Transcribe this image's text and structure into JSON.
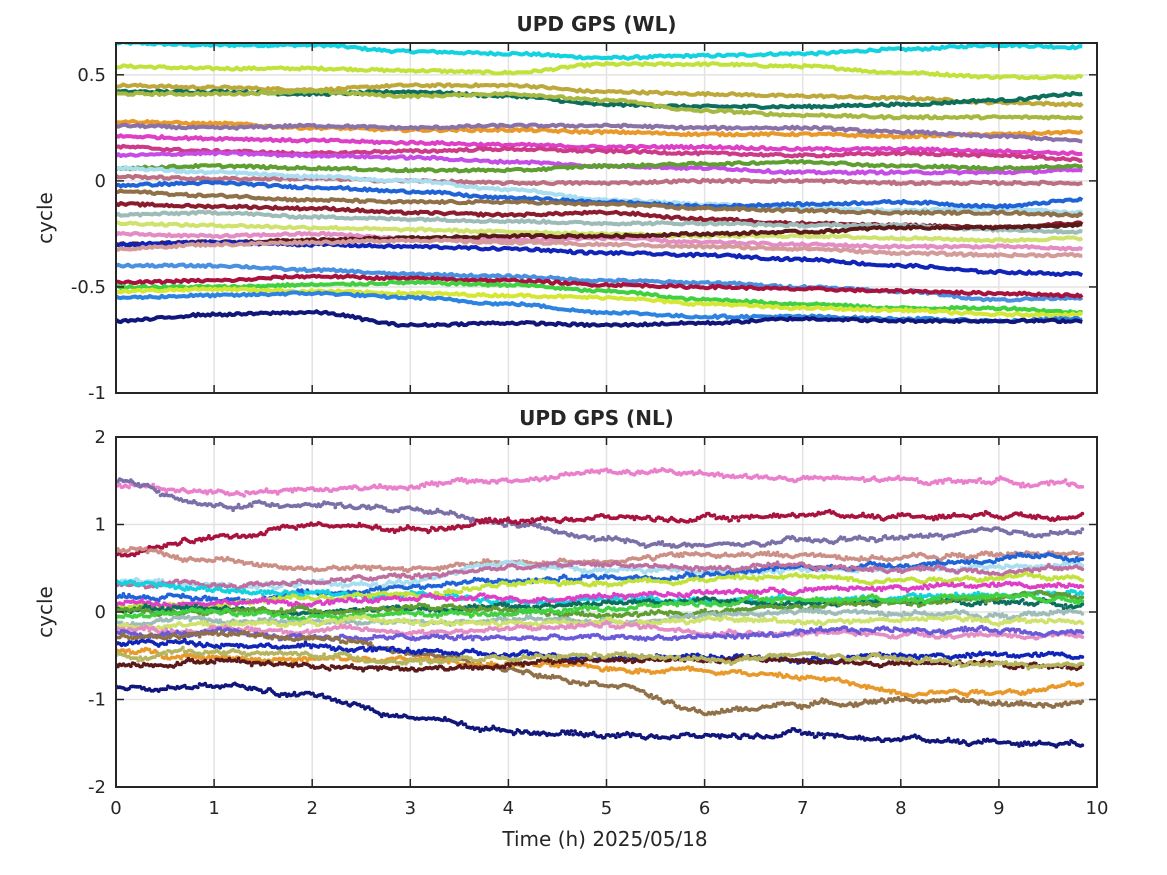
{
  "figure": {
    "xlabel": "Time (h) 2025/05/18"
  },
  "chart_data": [
    {
      "type": "line",
      "title": "UPD GPS (WL)",
      "xlabel": "",
      "ylabel": "cycle",
      "xlim": [
        0,
        10
      ],
      "ylim": [
        -1,
        0.65
      ],
      "xticks": [
        0,
        1,
        2,
        3,
        4,
        5,
        6,
        7,
        8,
        9,
        10
      ],
      "xtick_labels_visible": false,
      "yticks": [
        -1,
        -0.5,
        0,
        0.5
      ],
      "ytick_labels": [
        "-1",
        "-0.5",
        "0",
        "0.5"
      ],
      "grid": true,
      "legend": "none",
      "x": [
        0,
        1,
        2,
        3,
        4,
        5,
        6,
        7,
        8,
        9,
        9.85
      ],
      "series": [
        {
          "color": "#12d2e0",
          "values": [
            0.65,
            0.64,
            0.64,
            0.61,
            0.6,
            0.58,
            0.59,
            0.6,
            0.62,
            0.64,
            0.63
          ]
        },
        {
          "color": "#c0e23a",
          "values": [
            0.54,
            0.53,
            0.53,
            0.52,
            0.51,
            0.55,
            0.55,
            0.54,
            0.51,
            0.49,
            0.49
          ]
        },
        {
          "color": "#bda83a",
          "values": [
            0.45,
            0.44,
            0.43,
            0.45,
            0.45,
            0.42,
            0.41,
            0.4,
            0.39,
            0.37,
            0.36
          ]
        },
        {
          "color": "#0e6e5c",
          "values": [
            0.42,
            0.42,
            0.41,
            0.42,
            0.4,
            0.36,
            0.35,
            0.35,
            0.36,
            0.38,
            0.41
          ]
        },
        {
          "color": "#a7b840",
          "values": [
            0.41,
            0.41,
            0.42,
            0.4,
            0.41,
            0.38,
            0.33,
            0.31,
            0.3,
            0.3,
            0.3
          ]
        },
        {
          "color": "#e8992a",
          "values": [
            0.28,
            0.27,
            0.25,
            0.24,
            0.24,
            0.23,
            0.22,
            0.22,
            0.21,
            0.22,
            0.23
          ]
        },
        {
          "color": "#8a72a8",
          "values": [
            0.26,
            0.25,
            0.26,
            0.25,
            0.26,
            0.26,
            0.25,
            0.25,
            0.23,
            0.21,
            0.19
          ]
        },
        {
          "color": "#dd3fc7",
          "values": [
            0.21,
            0.2,
            0.19,
            0.18,
            0.17,
            0.16,
            0.16,
            0.15,
            0.15,
            0.14,
            0.13
          ]
        },
        {
          "color": "#cc3b88",
          "values": [
            0.16,
            0.14,
            0.13,
            0.14,
            0.15,
            0.14,
            0.13,
            0.12,
            0.13,
            0.12,
            0.1
          ]
        },
        {
          "color": "#c64ce6",
          "values": [
            0.12,
            0.13,
            0.12,
            0.11,
            0.09,
            0.07,
            0.06,
            0.04,
            0.04,
            0.04,
            0.05
          ]
        },
        {
          "color": "#5f9f32",
          "values": [
            0.06,
            0.07,
            0.06,
            0.05,
            0.05,
            0.07,
            0.08,
            0.09,
            0.07,
            0.06,
            0.07
          ]
        },
        {
          "color": "#bb6f80",
          "values": [
            0.02,
            0.01,
            0.01,
            0.0,
            -0.01,
            -0.01,
            0.0,
            0.0,
            -0.01,
            -0.01,
            -0.01
          ]
        },
        {
          "color": "#a9ddf0",
          "values": [
            0.06,
            0.04,
            0.02,
            0.0,
            -0.04,
            -0.09,
            -0.11,
            -0.13,
            -0.14,
            -0.13,
            -0.15
          ]
        },
        {
          "color": "#1f63d6",
          "values": [
            -0.02,
            -0.01,
            -0.03,
            -0.05,
            -0.08,
            -0.1,
            -0.12,
            -0.11,
            -0.1,
            -0.12,
            -0.09
          ]
        },
        {
          "color": "#8f7048",
          "values": [
            -0.05,
            -0.07,
            -0.09,
            -0.1,
            -0.1,
            -0.11,
            -0.13,
            -0.14,
            -0.15,
            -0.15,
            -0.16
          ]
        },
        {
          "color": "#8a1c2e",
          "values": [
            -0.11,
            -0.12,
            -0.13,
            -0.15,
            -0.16,
            -0.15,
            -0.18,
            -0.2,
            -0.21,
            -0.22,
            -0.2
          ]
        },
        {
          "color": "#9dbcb8",
          "values": [
            -0.16,
            -0.15,
            -0.17,
            -0.18,
            -0.19,
            -0.2,
            -0.2,
            -0.21,
            -0.21,
            -0.23,
            -0.24
          ]
        },
        {
          "color": "#cfe26c",
          "values": [
            -0.2,
            -0.21,
            -0.22,
            -0.23,
            -0.24,
            -0.25,
            -0.26,
            -0.26,
            -0.27,
            -0.28,
            -0.27
          ]
        },
        {
          "color": "#e48cc4",
          "values": [
            -0.25,
            -0.26,
            -0.25,
            -0.27,
            -0.28,
            -0.27,
            -0.29,
            -0.3,
            -0.31,
            -0.31,
            -0.32
          ]
        },
        {
          "color": "#5a1a1a",
          "values": [
            -0.3,
            -0.29,
            -0.28,
            -0.27,
            -0.26,
            -0.26,
            -0.25,
            -0.24,
            -0.22,
            -0.22,
            -0.21
          ]
        },
        {
          "color": "#1024b8",
          "values": [
            -0.3,
            -0.29,
            -0.3,
            -0.31,
            -0.32,
            -0.34,
            -0.35,
            -0.37,
            -0.4,
            -0.43,
            -0.44
          ]
        },
        {
          "color": "#d49b9b",
          "values": [
            -0.32,
            -0.3,
            -0.29,
            -0.28,
            -0.29,
            -0.3,
            -0.31,
            -0.32,
            -0.34,
            -0.35,
            -0.35
          ]
        },
        {
          "color": "#4a90e0",
          "values": [
            -0.4,
            -0.4,
            -0.42,
            -0.44,
            -0.45,
            -0.47,
            -0.48,
            -0.5,
            -0.52,
            -0.56,
            -0.55
          ]
        },
        {
          "color": "#a8133e",
          "values": [
            -0.48,
            -0.47,
            -0.45,
            -0.46,
            -0.47,
            -0.49,
            -0.5,
            -0.51,
            -0.52,
            -0.53,
            -0.54
          ]
        },
        {
          "color": "#40d040",
          "values": [
            -0.5,
            -0.5,
            -0.49,
            -0.48,
            -0.49,
            -0.52,
            -0.56,
            -0.58,
            -0.6,
            -0.6,
            -0.62
          ]
        },
        {
          "color": "#d6e634",
          "values": [
            -0.52,
            -0.51,
            -0.52,
            -0.53,
            -0.54,
            -0.55,
            -0.58,
            -0.6,
            -0.61,
            -0.63,
            -0.63
          ]
        },
        {
          "color": "#2d84e0",
          "values": [
            -0.55,
            -0.54,
            -0.53,
            -0.55,
            -0.58,
            -0.62,
            -0.64,
            -0.64,
            -0.65,
            -0.66,
            -0.65
          ]
        },
        {
          "color": "#10167a",
          "values": [
            -0.66,
            -0.63,
            -0.62,
            -0.68,
            -0.67,
            -0.68,
            -0.67,
            -0.65,
            -0.66,
            -0.66,
            -0.66
          ]
        }
      ]
    },
    {
      "type": "scatter",
      "title": "UPD GPS (NL)",
      "xlabel": "Time (h) 2025/05/18",
      "ylabel": "cycle",
      "xlim": [
        0,
        10
      ],
      "ylim": [
        -2,
        2
      ],
      "xticks": [
        0,
        1,
        2,
        3,
        4,
        5,
        6,
        7,
        8,
        9,
        10
      ],
      "xtick_labels": [
        "0",
        "1",
        "2",
        "3",
        "4",
        "5",
        "6",
        "7",
        "8",
        "9",
        "10"
      ],
      "yticks": [
        -2,
        -1,
        0,
        1,
        2
      ],
      "ytick_labels": [
        "-2",
        "-1",
        "0",
        "1",
        "2"
      ],
      "grid": true,
      "legend": "none",
      "x": [
        0,
        1,
        2,
        3,
        4,
        5,
        6,
        7,
        8,
        9,
        9.85
      ],
      "series": [
        {
          "color": "#ea7fcc",
          "values": [
            1.45,
            1.38,
            1.4,
            1.45,
            1.5,
            1.6,
            1.58,
            1.52,
            1.5,
            1.5,
            1.45
          ]
        },
        {
          "color": "#7b6fa8",
          "values": [
            1.5,
            1.2,
            1.25,
            1.15,
            1.0,
            0.82,
            0.75,
            0.8,
            0.85,
            0.9,
            0.92
          ]
        },
        {
          "color": "#a8133e",
          "values": [
            0.65,
            0.85,
            1.0,
            0.95,
            1.05,
            1.08,
            1.06,
            1.12,
            1.1,
            1.12,
            1.12
          ]
        },
        {
          "color": "#cc8f86",
          "values": [
            0.7,
            0.6,
            0.5,
            0.5,
            0.55,
            0.6,
            0.65,
            0.65,
            0.62,
            0.65,
            0.7
          ]
        },
        {
          "color": "#a9ddf0",
          "values": [
            0.35,
            0.3,
            0.3,
            0.35,
            0.55,
            0.5,
            0.45,
            0.5,
            0.48,
            0.52,
            0.55
          ]
        },
        {
          "color": "#1f63d6",
          "values": [
            0.2,
            0.15,
            0.2,
            0.3,
            0.35,
            0.4,
            0.45,
            0.5,
            0.55,
            0.6,
            0.62
          ]
        },
        {
          "color": "#bd6fa0",
          "values": [
            0.3,
            0.3,
            0.35,
            0.4,
            0.5,
            0.55,
            0.5,
            0.5,
            0.5,
            0.48,
            0.5
          ]
        },
        {
          "color": "#12d2e0",
          "values": [
            0.35,
            0.25,
            0.2,
            0.2,
            0.15,
            0.15,
            0.12,
            0.15,
            0.15,
            0.2,
            0.2
          ]
        },
        {
          "color": "#c0e23a",
          "values": [
            0.1,
            0.1,
            0.15,
            0.2,
            0.3,
            0.35,
            0.38,
            0.4,
            0.38,
            0.4,
            0.38
          ]
        },
        {
          "color": "#dd3fc7",
          "values": [
            0.1,
            0.12,
            0.1,
            0.15,
            0.15,
            0.2,
            0.22,
            0.25,
            0.28,
            0.3,
            0.32
          ]
        },
        {
          "color": "#0e6e5c",
          "values": [
            0.05,
            0.05,
            0.0,
            0.05,
            0.05,
            0.1,
            0.12,
            0.1,
            0.1,
            0.12,
            0.1
          ]
        },
        {
          "color": "#5f9f32",
          "values": [
            0.0,
            0.0,
            0.02,
            0.05,
            0.0,
            -0.05,
            0.0,
            0.05,
            0.1,
            0.15,
            0.2
          ]
        },
        {
          "color": "#40d040",
          "values": [
            -0.05,
            0.0,
            -0.05,
            -0.02,
            0.0,
            0.05,
            0.1,
            0.15,
            0.15,
            0.2,
            0.15
          ]
        },
        {
          "color": "#9dbcb8",
          "values": [
            -0.1,
            -0.1,
            -0.1,
            -0.12,
            -0.1,
            -0.1,
            -0.05,
            0.0,
            0.0,
            -0.05,
            0.0
          ]
        },
        {
          "color": "#cfe26c",
          "values": [
            -0.15,
            -0.15,
            -0.12,
            -0.1,
            -0.15,
            -0.1,
            -0.1,
            -0.1,
            -0.08,
            -0.1,
            -0.1
          ]
        },
        {
          "color": "#e48cc4",
          "values": [
            -0.2,
            -0.2,
            -0.2,
            -0.22,
            -0.2,
            -0.15,
            -0.2,
            -0.25,
            -0.25,
            -0.25,
            -0.3
          ]
        },
        {
          "color": "#6a5ad8",
          "values": [
            -0.25,
            -0.25,
            -0.28,
            -0.3,
            -0.3,
            -0.3,
            -0.28,
            -0.25,
            -0.2,
            -0.2,
            -0.22
          ]
        },
        {
          "color": "#8f7048",
          "values": [
            -0.3,
            -0.25,
            -0.3,
            -0.45,
            -0.65,
            -0.8,
            -1.15,
            -1.05,
            -1.0,
            -1.05,
            -1.05
          ]
        },
        {
          "color": "#e8992a",
          "values": [
            -0.45,
            -0.5,
            -0.55,
            -0.55,
            -0.6,
            -0.65,
            -0.65,
            -0.75,
            -0.9,
            -0.9,
            -0.85
          ]
        },
        {
          "color": "#1024b8",
          "values": [
            -0.35,
            -0.35,
            -0.4,
            -0.45,
            -0.5,
            -0.5,
            -0.5,
            -0.55,
            -0.5,
            -0.5,
            -0.5
          ]
        },
        {
          "color": "#5a1a1a",
          "values": [
            -0.6,
            -0.55,
            -0.6,
            -0.65,
            -0.6,
            -0.55,
            -0.55,
            -0.55,
            -0.6,
            -0.6,
            -0.62
          ]
        },
        {
          "color": "#b5b560",
          "values": [
            -0.5,
            -0.45,
            -0.5,
            -0.55,
            -0.55,
            -0.5,
            -0.55,
            -0.5,
            -0.55,
            -0.6,
            -0.65
          ]
        },
        {
          "color": "#10167a",
          "values": [
            -0.85,
            -0.85,
            -0.95,
            -1.2,
            -1.35,
            -1.4,
            -1.42,
            -1.4,
            -1.45,
            -1.48,
            -1.5
          ]
        }
      ]
    }
  ]
}
